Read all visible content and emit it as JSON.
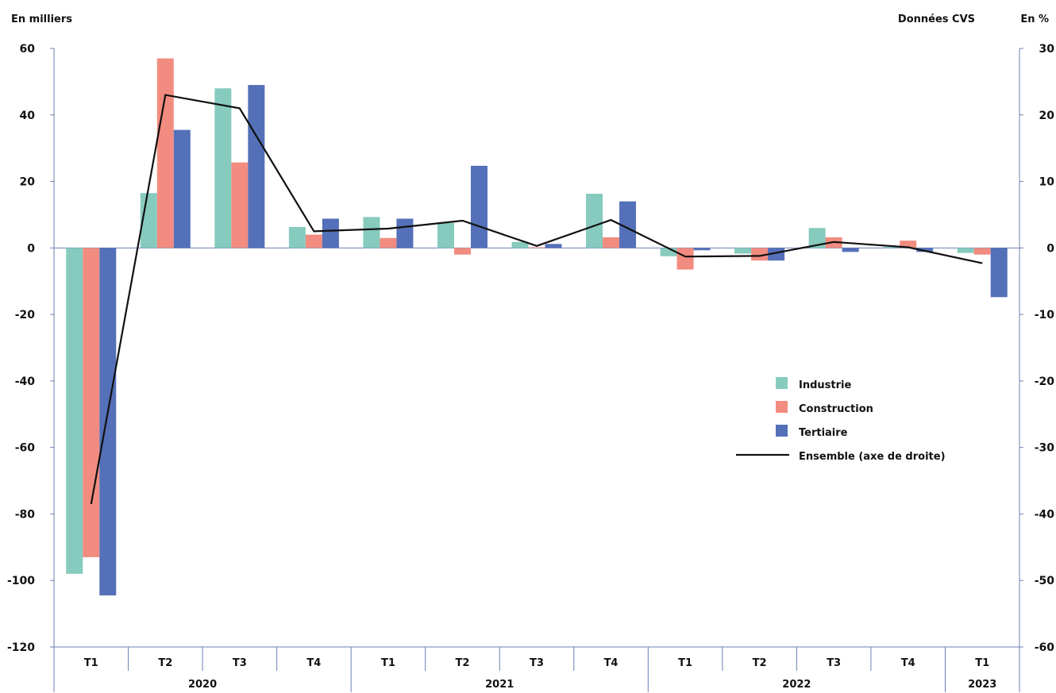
{
  "header": {
    "left_unit": "En milliers",
    "right_note": "Données CVS",
    "right_unit": "En %"
  },
  "chart_data": {
    "type": "bar",
    "categories": [
      "T1",
      "T2",
      "T3",
      "T4",
      "T1",
      "T2",
      "T3",
      "T4",
      "T1",
      "T2",
      "T3",
      "T4",
      "T1"
    ],
    "years": [
      {
        "label": "2020",
        "count": 4
      },
      {
        "label": "2021",
        "count": 4
      },
      {
        "label": "2022",
        "count": 4
      },
      {
        "label": "2023",
        "count": 1
      }
    ],
    "ylim": [
      -120,
      60
    ],
    "yticks": [
      60,
      40,
      20,
      0,
      -20,
      -40,
      -60,
      -80,
      -100,
      -120
    ],
    "y2lim": [
      -60,
      30
    ],
    "y2ticks": [
      30,
      20,
      10,
      0,
      -10,
      -20,
      -30,
      -40,
      -50,
      -60
    ],
    "series": [
      {
        "name": "Industrie",
        "color": "#86cbbe",
        "values": [
          -98,
          16.5,
          48,
          6.3,
          9.3,
          7.5,
          1.8,
          16.3,
          -2.5,
          -1.7,
          6,
          0.3,
          -1.5
        ]
      },
      {
        "name": "Construction",
        "color": "#f28c80",
        "values": [
          -93,
          57,
          25.7,
          4,
          3,
          -2,
          0.2,
          3.2,
          -6.5,
          -3.8,
          3.2,
          2.2,
          -2
        ]
      },
      {
        "name": "Tertiaire",
        "color": "#5470b8",
        "values": [
          -104.5,
          35.5,
          49,
          8.8,
          8.8,
          24.7,
          1.2,
          14,
          -0.7,
          -3.8,
          -1.2,
          -1.2,
          -14.8
        ]
      },
      {
        "name": "Ensemble (axe de droite)",
        "color": "#111111",
        "type": "line",
        "axis": "right",
        "values": [
          -38.5,
          23,
          21,
          2.5,
          2.9,
          4.1,
          0.3,
          4.2,
          -1.3,
          -1.2,
          0.9,
          0.1,
          -2.3
        ]
      }
    ],
    "legend_position": "right"
  }
}
